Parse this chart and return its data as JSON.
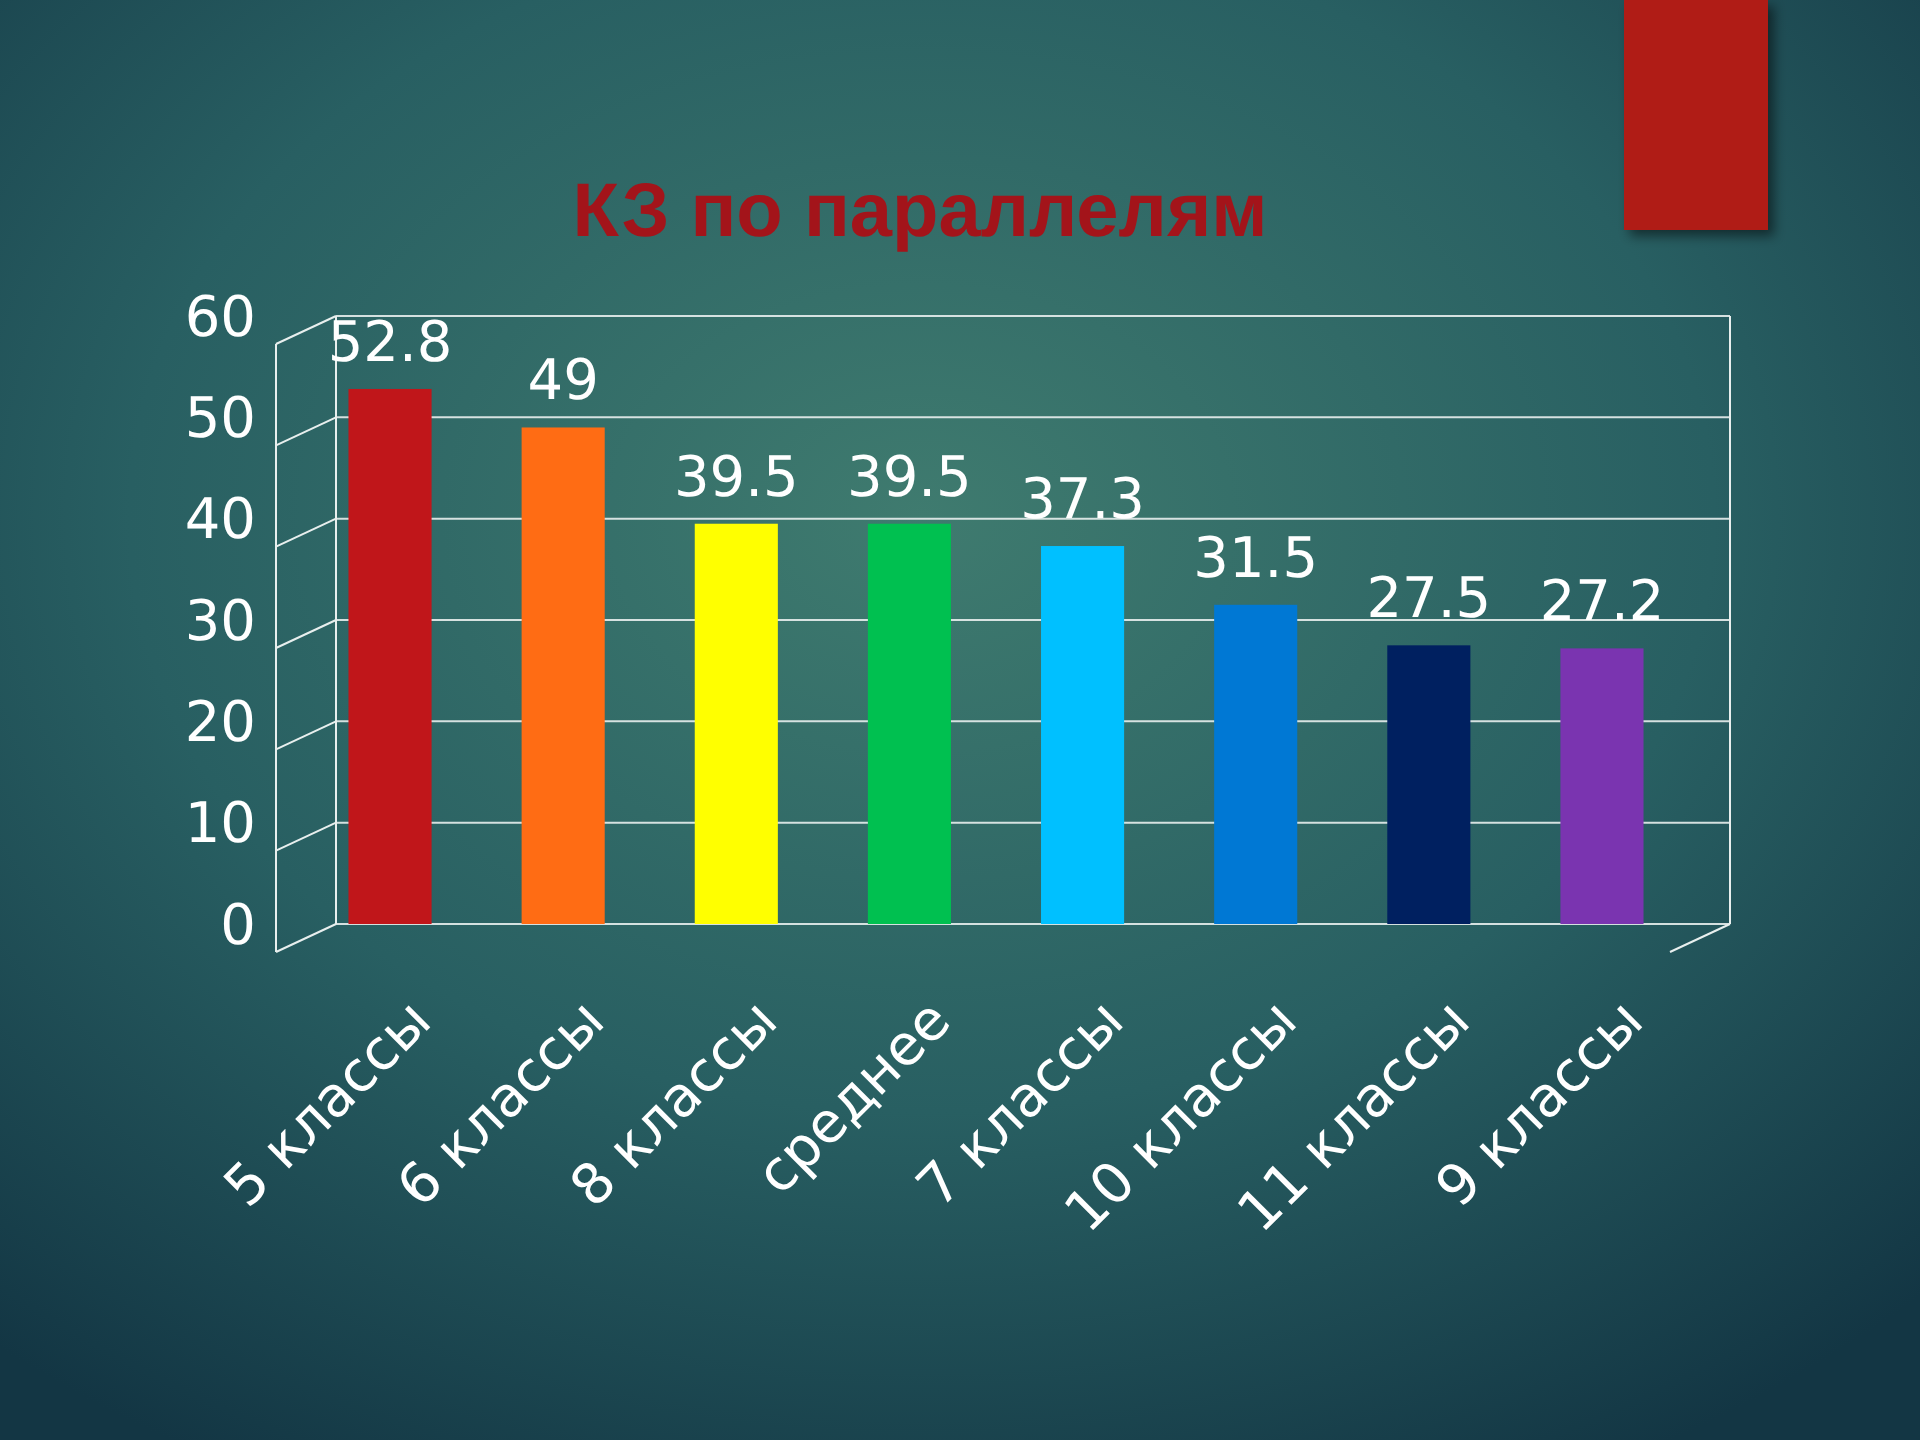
{
  "chart_data": {
    "type": "bar",
    "title": "КЗ по параллелям",
    "categories": [
      "5 классы",
      "6 классы",
      "8 классы",
      "среднее",
      "7 классы",
      "10 классы",
      "11 классы",
      "9 классы"
    ],
    "values": [
      52.8,
      49,
      39.5,
      39.5,
      37.3,
      31.5,
      27.5,
      27.2
    ],
    "colors": [
      "#c0161a",
      "#ff6c14",
      "#ffff00",
      "#00c050",
      "#00c0ff",
      "#0078d4",
      "#002060",
      "#7a34b0"
    ],
    "ylim": [
      0,
      60
    ],
    "yticks": [
      0,
      10,
      20,
      30,
      40,
      50,
      60
    ],
    "grid": "y",
    "data_labels": true
  }
}
